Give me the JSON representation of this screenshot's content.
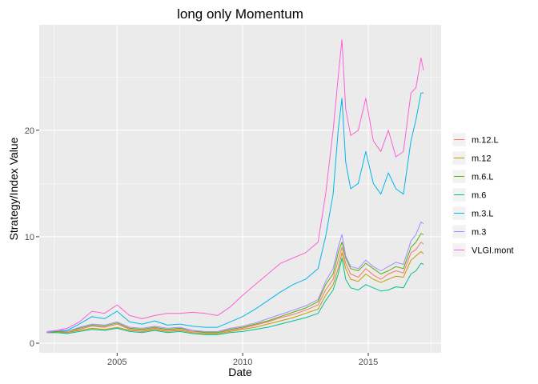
{
  "chart_data": {
    "type": "line",
    "title": "long only Momentum",
    "xlabel": "Date",
    "ylabel": "Strategy/Index Value",
    "xlim": [
      2001.9,
      2017.9
    ],
    "ylim": [
      -0.9,
      29.9
    ],
    "x_ticks": [
      2005,
      2010,
      2015
    ],
    "x_tick_labels": [
      "2005",
      "2010",
      "2015"
    ],
    "y_ticks": [
      0,
      10,
      20
    ],
    "y_tick_labels": [
      "0",
      "10",
      "20"
    ],
    "grid": true,
    "legend_position": "right",
    "x": [
      2002.2,
      2002.6,
      2003.0,
      2003.5,
      2004.0,
      2004.5,
      2005.0,
      2005.5,
      2006.0,
      2006.5,
      2007.0,
      2007.5,
      2008.0,
      2008.5,
      2009.0,
      2009.5,
      2010.0,
      2010.5,
      2011.0,
      2011.5,
      2012.0,
      2012.5,
      2013.0,
      2013.3,
      2013.6,
      2013.8,
      2013.95,
      2014.1,
      2014.3,
      2014.6,
      2014.9,
      2015.2,
      2015.5,
      2015.8,
      2016.1,
      2016.4,
      2016.7,
      2016.9,
      2017.1,
      2017.2
    ],
    "series": [
      {
        "name": "m.12.L",
        "color": "#F8766D",
        "values": [
          1.0,
          1.1,
          1.0,
          1.3,
          1.6,
          1.5,
          1.8,
          1.3,
          1.2,
          1.4,
          1.2,
          1.3,
          1.1,
          1.0,
          1.0,
          1.2,
          1.4,
          1.7,
          2.0,
          2.4,
          2.7,
          3.1,
          3.6,
          5.0,
          6.0,
          7.8,
          9.0,
          7.5,
          6.5,
          6.2,
          7.0,
          6.4,
          6.0,
          6.5,
          6.8,
          6.6,
          8.5,
          8.8,
          9.5,
          9.3
        ]
      },
      {
        "name": "m.12",
        "color": "#C49A00",
        "values": [
          1.0,
          1.0,
          1.0,
          1.2,
          1.4,
          1.3,
          1.5,
          1.2,
          1.1,
          1.3,
          1.1,
          1.2,
          1.0,
          0.9,
          0.9,
          1.1,
          1.3,
          1.5,
          1.8,
          2.1,
          2.4,
          2.8,
          3.2,
          4.5,
          5.5,
          7.0,
          8.5,
          7.0,
          6.0,
          5.8,
          6.5,
          6.0,
          5.7,
          6.0,
          6.3,
          6.2,
          7.8,
          8.2,
          8.6,
          8.4
        ]
      },
      {
        "name": "m.6.L",
        "color": "#53B400",
        "values": [
          1.0,
          1.1,
          1.1,
          1.4,
          1.7,
          1.6,
          1.9,
          1.4,
          1.3,
          1.5,
          1.3,
          1.4,
          1.2,
          1.0,
          1.0,
          1.3,
          1.5,
          1.8,
          2.1,
          2.5,
          2.9,
          3.3,
          3.9,
          5.5,
          6.5,
          8.5,
          9.5,
          8.0,
          7.0,
          6.8,
          7.5,
          7.0,
          6.5,
          6.8,
          7.2,
          7.0,
          9.0,
          9.5,
          10.3,
          10.2
        ]
      },
      {
        "name": "m.6",
        "color": "#00C094",
        "values": [
          1.0,
          1.0,
          0.9,
          1.1,
          1.3,
          1.2,
          1.4,
          1.1,
          1.0,
          1.2,
          1.0,
          1.1,
          0.9,
          0.8,
          0.8,
          1.0,
          1.1,
          1.3,
          1.5,
          1.8,
          2.1,
          2.4,
          2.8,
          4.0,
          5.0,
          6.5,
          8.0,
          6.0,
          5.2,
          5.0,
          5.5,
          5.2,
          4.9,
          5.0,
          5.3,
          5.2,
          6.5,
          6.8,
          7.5,
          7.4
        ]
      },
      {
        "name": "m.3.L",
        "color": "#00B6EB",
        "values": [
          1.0,
          1.2,
          1.2,
          1.8,
          2.5,
          2.3,
          3.0,
          2.0,
          1.8,
          2.1,
          1.7,
          1.8,
          1.6,
          1.5,
          1.5,
          2.0,
          2.5,
          3.2,
          4.0,
          4.8,
          5.5,
          6.0,
          7.0,
          10.0,
          14.0,
          20.0,
          23.0,
          17.0,
          14.5,
          15.0,
          18.0,
          15.0,
          14.0,
          16.0,
          14.5,
          14.0,
          19.0,
          21.0,
          23.5,
          23.5
        ]
      },
      {
        "name": "m.3",
        "color": "#A58AFF",
        "values": [
          1.1,
          1.2,
          1.1,
          1.5,
          1.8,
          1.7,
          2.0,
          1.5,
          1.4,
          1.6,
          1.4,
          1.5,
          1.2,
          1.1,
          1.1,
          1.4,
          1.6,
          1.9,
          2.3,
          2.7,
          3.1,
          3.5,
          4.1,
          5.8,
          7.0,
          9.0,
          10.2,
          8.2,
          7.2,
          7.0,
          7.8,
          7.2,
          6.8,
          7.2,
          7.6,
          7.4,
          9.6,
          10.2,
          11.4,
          11.2
        ]
      },
      {
        "name": "VLGI.mont",
        "color": "#FB61D7",
        "values": [
          1.0,
          1.2,
          1.4,
          2.0,
          3.0,
          2.8,
          3.6,
          2.6,
          2.3,
          2.6,
          2.8,
          2.8,
          2.9,
          2.8,
          2.6,
          3.4,
          4.5,
          5.5,
          6.5,
          7.5,
          8.0,
          8.5,
          9.5,
          14.0,
          20.0,
          25.0,
          28.5,
          22.0,
          19.5,
          20.0,
          23.0,
          19.0,
          18.0,
          20.0,
          17.5,
          18.0,
          23.5,
          24.0,
          26.8,
          25.6
        ]
      }
    ]
  }
}
